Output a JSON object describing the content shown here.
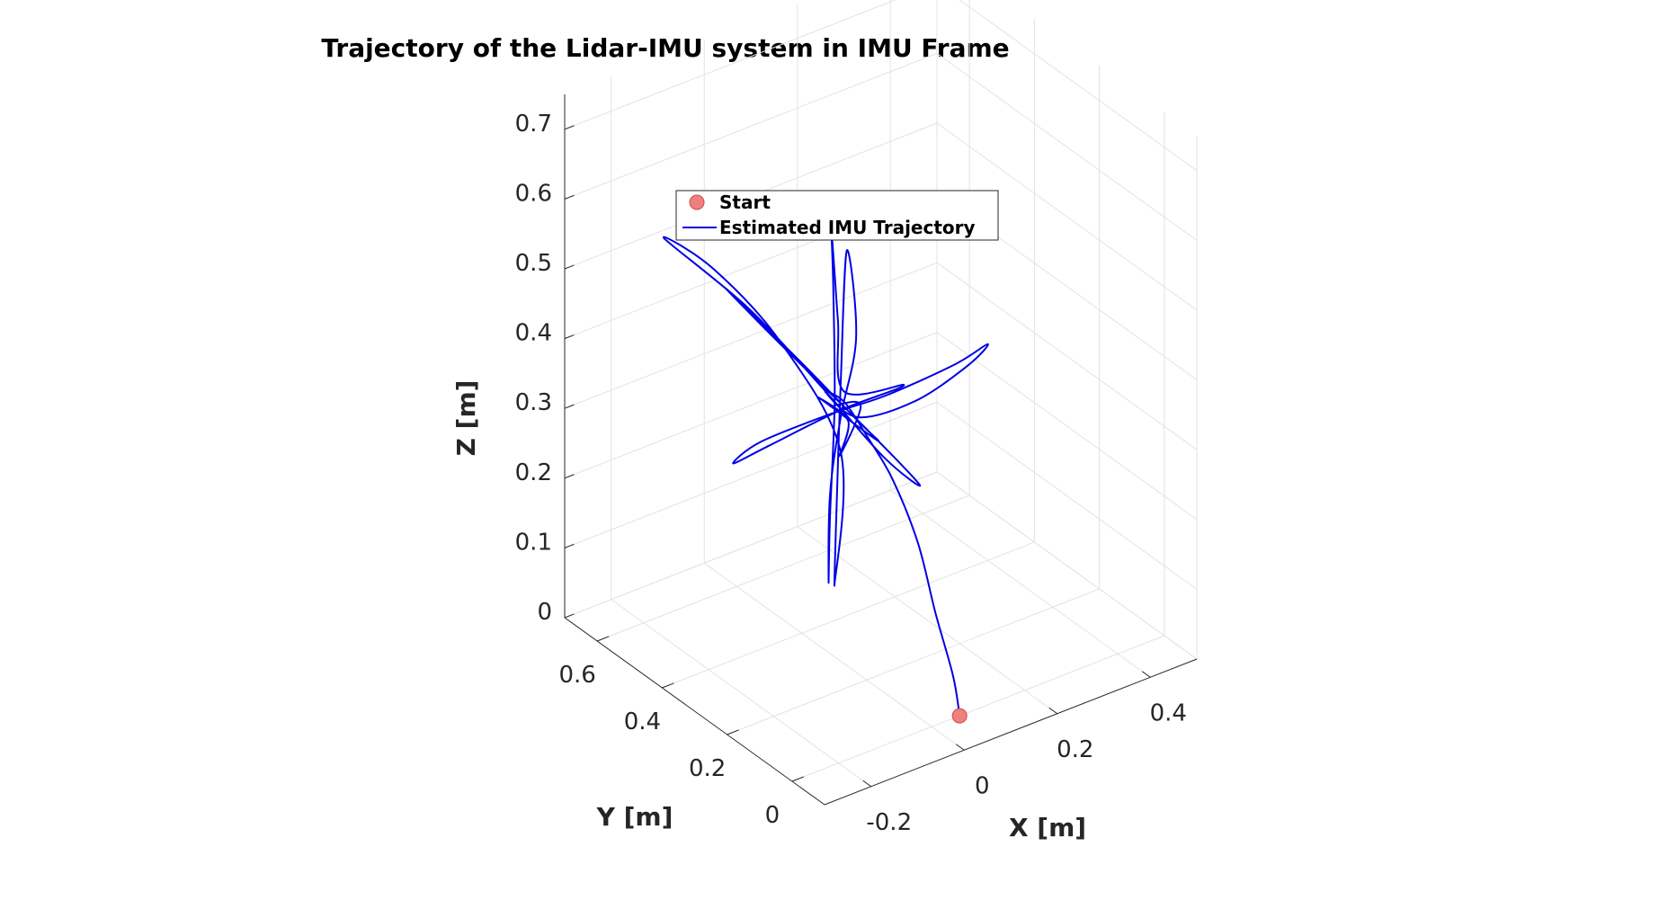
{
  "chart_data": {
    "type": "line3d",
    "title": "Trajectory of the Lidar-IMU system in IMU Frame",
    "xlabel": "X [m]",
    "ylabel": "Y [m]",
    "zlabel": "Z [m]",
    "xlim": [
      -0.3,
      0.5
    ],
    "ylim": [
      -0.1,
      0.7
    ],
    "zlim": [
      0,
      0.75
    ],
    "xticks": [
      "-0.2",
      "0",
      "0.2",
      "0.4"
    ],
    "yticks": [
      "0",
      "0.2",
      "0.4",
      "0.6"
    ],
    "zticks": [
      "0",
      "0.1",
      "0.2",
      "0.3",
      "0.4",
      "0.5",
      "0.6",
      "0.7"
    ],
    "grid": true,
    "legend": {
      "placement": "top-left",
      "entries": [
        {
          "label": "Start",
          "marker": "circle",
          "color": "#f08080"
        },
        {
          "label": "Estimated IMU Trajectory",
          "marker": "line",
          "color": "#0000e6"
        }
      ]
    },
    "series": [
      {
        "name": "Start",
        "color": "#f08080",
        "point": {
          "x": 0.06,
          "y": 0.0,
          "z": 0.0
        }
      },
      {
        "name": "Estimated IMU Trajectory",
        "color": "#0000e6",
        "points": [
          [
            0.06,
            0.0,
            0.0
          ],
          [
            0.06,
            0.02,
            0.05
          ],
          [
            0.05,
            0.06,
            0.13
          ],
          [
            0.04,
            0.1,
            0.22
          ],
          [
            0.02,
            0.15,
            0.3
          ],
          [
            0.0,
            0.2,
            0.35
          ],
          [
            -0.02,
            0.24,
            0.39
          ],
          [
            -0.04,
            0.27,
            0.4
          ],
          [
            0.05,
            0.3,
            0.33
          ],
          [
            0.2,
            0.34,
            0.3
          ],
          [
            0.34,
            0.38,
            0.3
          ],
          [
            0.4,
            0.4,
            0.31
          ],
          [
            0.3,
            0.36,
            0.32
          ],
          [
            0.12,
            0.31,
            0.34
          ],
          [
            -0.02,
            0.28,
            0.36
          ],
          [
            -0.2,
            0.24,
            0.38
          ],
          [
            -0.28,
            0.21,
            0.38
          ],
          [
            -0.18,
            0.24,
            0.37
          ],
          [
            0.0,
            0.28,
            0.36
          ],
          [
            0.15,
            0.3,
            0.35
          ],
          [
            0.0,
            0.27,
            0.39
          ],
          [
            -0.02,
            0.26,
            0.5
          ],
          [
            -0.04,
            0.25,
            0.63
          ],
          [
            -0.03,
            0.26,
            0.55
          ],
          [
            -0.02,
            0.27,
            0.38
          ],
          [
            -0.03,
            0.27,
            0.22
          ],
          [
            -0.04,
            0.26,
            0.13
          ],
          [
            -0.03,
            0.27,
            0.25
          ],
          [
            0.0,
            0.28,
            0.35
          ],
          [
            0.04,
            0.29,
            0.45
          ],
          [
            0.02,
            0.29,
            0.58
          ],
          [
            0.0,
            0.28,
            0.4
          ],
          [
            -0.01,
            0.28,
            0.2
          ],
          [
            -0.02,
            0.27,
            0.12
          ],
          [
            0.0,
            0.28,
            0.3
          ],
          [
            -0.06,
            0.38,
            0.44
          ],
          [
            -0.12,
            0.5,
            0.52
          ],
          [
            -0.17,
            0.58,
            0.55
          ],
          [
            -0.08,
            0.45,
            0.47
          ],
          [
            -0.01,
            0.32,
            0.38
          ],
          [
            0.05,
            0.22,
            0.3
          ],
          [
            0.1,
            0.18,
            0.26
          ],
          [
            0.04,
            0.26,
            0.33
          ],
          [
            -0.05,
            0.4,
            0.43
          ],
          [
            -0.1,
            0.49,
            0.49
          ],
          [
            -0.03,
            0.36,
            0.41
          ],
          [
            0.03,
            0.27,
            0.34
          ],
          [
            0.06,
            0.25,
            0.31
          ],
          [
            0.02,
            0.3,
            0.34
          ],
          [
            -0.02,
            0.32,
            0.37
          ],
          [
            0.03,
            0.3,
            0.33
          ],
          [
            -0.01,
            0.27,
            0.3
          ],
          [
            0.05,
            0.29,
            0.35
          ],
          [
            0.0,
            0.3,
            0.36
          ]
        ]
      }
    ]
  }
}
